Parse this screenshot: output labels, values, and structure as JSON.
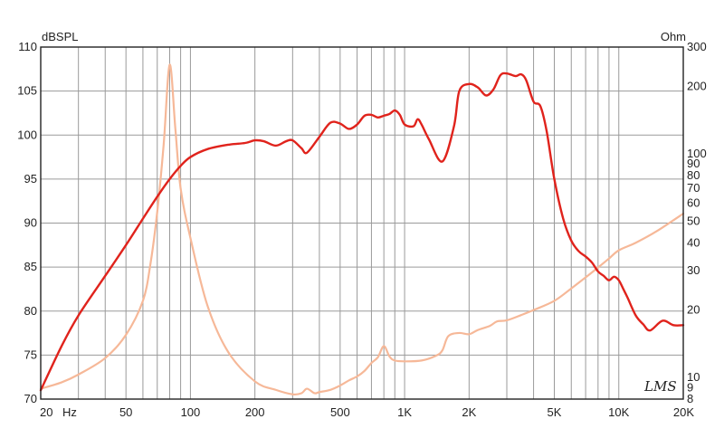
{
  "chart_data": {
    "type": "line",
    "title": "",
    "left_axis_unit": "dBSPL",
    "right_axis_unit": "Ohm",
    "x_scale": "log",
    "xlim": [
      20,
      20000
    ],
    "ylim_left": [
      70,
      110
    ],
    "ylim_right": [
      8,
      300
    ],
    "right_scale": "log",
    "grid": true,
    "x_ticks": [
      {
        "v": 20,
        "label": "20"
      },
      {
        "v": 50,
        "label": "50"
      },
      {
        "v": 100,
        "label": "100"
      },
      {
        "v": 200,
        "label": "200"
      },
      {
        "v": 500,
        "label": "500"
      },
      {
        "v": 1000,
        "label": "1K"
      },
      {
        "v": 2000,
        "label": "2K"
      },
      {
        "v": 5000,
        "label": "5K"
      },
      {
        "v": 10000,
        "label": "10K"
      },
      {
        "v": 20000,
        "label": "20K"
      }
    ],
    "x_unit_label": "Hz",
    "x_grid": [
      20,
      30,
      40,
      50,
      60,
      70,
      80,
      90,
      100,
      200,
      300,
      400,
      500,
      600,
      700,
      800,
      900,
      1000,
      2000,
      3000,
      4000,
      5000,
      6000,
      7000,
      8000,
      9000,
      10000,
      20000
    ],
    "y_left_ticks": [
      {
        "v": 110,
        "label": "110"
      },
      {
        "v": 105,
        "label": "105"
      },
      {
        "v": 100,
        "label": "100"
      },
      {
        "v": 95,
        "label": "95"
      },
      {
        "v": 90,
        "label": "90"
      },
      {
        "v": 85,
        "label": "85"
      },
      {
        "v": 80,
        "label": "80"
      },
      {
        "v": 75,
        "label": "75"
      },
      {
        "v": 70,
        "label": "70"
      }
    ],
    "y_right_ticks": [
      {
        "v": 300,
        "label": "300"
      },
      {
        "v": 200,
        "label": "200"
      },
      {
        "v": 100,
        "label": "100"
      },
      {
        "v": 90,
        "label": "90"
      },
      {
        "v": 80,
        "label": "80"
      },
      {
        "v": 70,
        "label": "70"
      },
      {
        "v": 60,
        "label": "60"
      },
      {
        "v": 50,
        "label": "50"
      },
      {
        "v": 40,
        "label": "40"
      },
      {
        "v": 30,
        "label": "30"
      },
      {
        "v": 20,
        "label": "20"
      },
      {
        "v": 10,
        "label": "10"
      },
      {
        "v": 9,
        "label": "9"
      },
      {
        "v": 8,
        "label": "8"
      }
    ],
    "series": [
      {
        "axis": "left",
        "color": "#e0231c",
        "x": [
          20,
          25,
          30,
          40,
          50,
          60,
          70,
          80,
          90,
          100,
          120,
          150,
          180,
          200,
          220,
          250,
          280,
          300,
          330,
          350,
          400,
          450,
          500,
          550,
          600,
          650,
          700,
          750,
          800,
          850,
          900,
          950,
          1000,
          1100,
          1150,
          1200,
          1300,
          1500,
          1700,
          1800,
          2000,
          2200,
          2400,
          2600,
          2800,
          3000,
          3300,
          3500,
          3700,
          4000,
          4300,
          4600,
          5000,
          5500,
          6000,
          6500,
          7000,
          7500,
          8000,
          8500,
          9000,
          9500,
          10000,
          10500,
          11000,
          12000,
          13000,
          14000,
          16000,
          18000,
          20000
        ],
        "values": [
          71,
          76,
          79.5,
          84,
          87.5,
          90.5,
          93,
          95,
          96.5,
          97.5,
          98.4,
          98.9,
          99.1,
          99.4,
          99.3,
          98.8,
          99.3,
          99.4,
          98.5,
          98,
          99.8,
          101.4,
          101.3,
          100.7,
          101.2,
          102.2,
          102.3,
          102,
          102.2,
          102.4,
          102.8,
          102.3,
          101.2,
          101,
          101.8,
          101.2,
          99.5,
          97,
          101,
          105,
          105.8,
          105.4,
          104.5,
          105.2,
          106.8,
          107,
          106.7,
          106.9,
          106.2,
          103.8,
          103.3,
          100.5,
          95,
          90.5,
          88,
          86.8,
          86.2,
          85.5,
          84.5,
          84,
          83.5,
          83.9,
          83.5,
          82.5,
          81.5,
          79.5,
          78.5,
          77.8,
          78.9,
          78.4,
          78.4
        ]
      },
      {
        "axis": "right",
        "color": "#f6b898",
        "x": [
          20,
          25,
          30,
          40,
          50,
          60,
          65,
          70,
          75,
          80,
          85,
          90,
          100,
          120,
          150,
          200,
          250,
          300,
          330,
          350,
          380,
          400,
          450,
          500,
          550,
          600,
          650,
          700,
          750,
          800,
          850,
          900,
          1000,
          1200,
          1400,
          1500,
          1600,
          1800,
          2000,
          2200,
          2500,
          2700,
          3000,
          3500,
          4000,
          5000,
          6000,
          7000,
          8000,
          9000,
          10000,
          12000,
          15000,
          20000
        ],
        "values": [
          8.9,
          9.5,
          10.3,
          12.2,
          15.5,
          22,
          32,
          55,
          110,
          250,
          130,
          70,
          42,
          21,
          13,
          9.6,
          8.8,
          8.4,
          8.5,
          8.9,
          8.5,
          8.6,
          8.8,
          9.2,
          9.7,
          10.1,
          10.7,
          11.6,
          12.3,
          13.8,
          12.4,
          11.9,
          11.8,
          11.9,
          12.5,
          13.2,
          15.3,
          15.8,
          15.6,
          16.3,
          17,
          17.8,
          18,
          19,
          20,
          22,
          25,
          28,
          31,
          34,
          37,
          40,
          45,
          54
        ]
      }
    ]
  },
  "watermark": "LMS"
}
